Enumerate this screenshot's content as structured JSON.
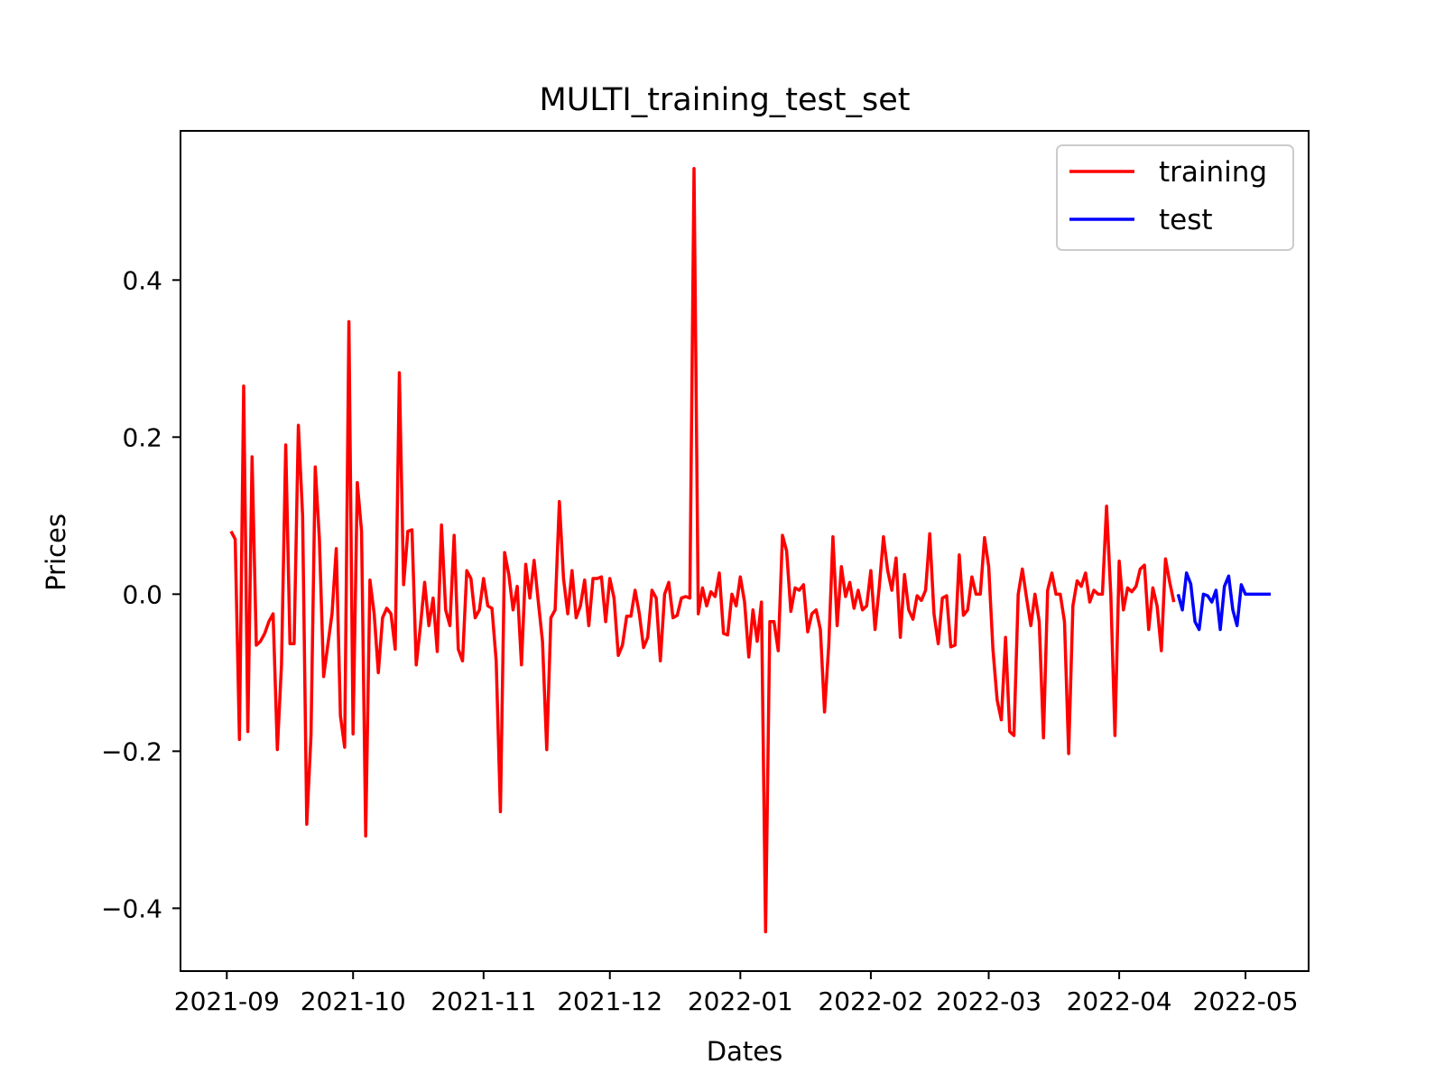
{
  "chart_data": {
    "type": "line",
    "title": "MULTI_training_test_set",
    "xlabel": "Dates",
    "ylabel": "Prices",
    "xlim": [
      "2021-08-21",
      "2022-05-16"
    ],
    "ylim": [
      -0.48,
      0.59
    ],
    "x_ticks": [
      "2021-09",
      "2021-10",
      "2021-11",
      "2021-12",
      "2022-01",
      "2022-02",
      "2022-03",
      "2022-04",
      "2022-05"
    ],
    "y_ticks": [
      -0.4,
      -0.2,
      0.0,
      0.2,
      0.4
    ],
    "y_tick_labels": [
      "−0.4",
      "−0.2",
      "0.0",
      "0.2",
      "0.4"
    ],
    "grid": false,
    "legend_position": "top-right",
    "colors": {
      "training": "#ff0000",
      "test": "#0000ff"
    },
    "series": [
      {
        "name": "training",
        "color": "#ff0000",
        "points": [
          [
            "2021-09-02",
            0.08
          ],
          [
            "2021-09-03",
            0.07
          ],
          [
            "2021-09-04",
            -0.185
          ],
          [
            "2021-09-05",
            0.265
          ],
          [
            "2021-09-06",
            -0.175
          ],
          [
            "2021-09-07",
            0.175
          ],
          [
            "2021-09-08",
            -0.065
          ],
          [
            "2021-09-09",
            -0.06
          ],
          [
            "2021-09-10",
            -0.05
          ],
          [
            "2021-09-11",
            -0.035
          ],
          [
            "2021-09-12",
            -0.025
          ],
          [
            "2021-09-13",
            -0.198
          ],
          [
            "2021-09-14",
            -0.09
          ],
          [
            "2021-09-15",
            0.19
          ],
          [
            "2021-09-16",
            -0.063
          ],
          [
            "2021-09-17",
            -0.063
          ],
          [
            "2021-09-18",
            0.215
          ],
          [
            "2021-09-19",
            0.1
          ],
          [
            "2021-09-20",
            -0.293
          ],
          [
            "2021-09-21",
            -0.18
          ],
          [
            "2021-09-22",
            0.162
          ],
          [
            "2021-09-23",
            0.07
          ],
          [
            "2021-09-24",
            -0.105
          ],
          [
            "2021-09-25",
            -0.065
          ],
          [
            "2021-09-26",
            -0.025
          ],
          [
            "2021-09-27",
            0.058
          ],
          [
            "2021-09-28",
            -0.155
          ],
          [
            "2021-09-29",
            -0.195
          ],
          [
            "2021-09-30",
            0.347
          ],
          [
            "2021-10-01",
            -0.178
          ],
          [
            "2021-10-02",
            0.142
          ],
          [
            "2021-10-03",
            0.08
          ],
          [
            "2021-10-04",
            -0.308
          ],
          [
            "2021-10-05",
            0.018
          ],
          [
            "2021-10-06",
            -0.025
          ],
          [
            "2021-10-07",
            -0.1
          ],
          [
            "2021-10-08",
            -0.03
          ],
          [
            "2021-10-09",
            -0.018
          ],
          [
            "2021-10-10",
            -0.025
          ],
          [
            "2021-10-11",
            -0.07
          ],
          [
            "2021-10-12",
            0.282
          ],
          [
            "2021-10-13",
            0.012
          ],
          [
            "2021-10-14",
            0.08
          ],
          [
            "2021-10-15",
            0.082
          ],
          [
            "2021-10-16",
            -0.09
          ],
          [
            "2021-10-17",
            -0.04
          ],
          [
            "2021-10-18",
            0.015
          ],
          [
            "2021-10-19",
            -0.04
          ],
          [
            "2021-10-20",
            -0.005
          ],
          [
            "2021-10-21",
            -0.073
          ],
          [
            "2021-10-22",
            0.088
          ],
          [
            "2021-10-23",
            -0.02
          ],
          [
            "2021-10-24",
            -0.04
          ],
          [
            "2021-10-25",
            0.075
          ],
          [
            "2021-10-26",
            -0.07
          ],
          [
            "2021-10-27",
            -0.085
          ],
          [
            "2021-10-28",
            0.03
          ],
          [
            "2021-10-29",
            0.02
          ],
          [
            "2021-10-30",
            -0.03
          ],
          [
            "2021-10-31",
            -0.02
          ],
          [
            "2021-11-01",
            0.02
          ],
          [
            "2021-11-02",
            -0.015
          ],
          [
            "2021-11-03",
            -0.018
          ],
          [
            "2021-11-04",
            -0.085
          ],
          [
            "2021-11-05",
            -0.277
          ],
          [
            "2021-11-06",
            0.053
          ],
          [
            "2021-11-07",
            0.025
          ],
          [
            "2021-11-08",
            -0.02
          ],
          [
            "2021-11-09",
            0.01
          ],
          [
            "2021-11-10",
            -0.09
          ],
          [
            "2021-11-11",
            0.038
          ],
          [
            "2021-11-12",
            -0.005
          ],
          [
            "2021-11-13",
            0.043
          ],
          [
            "2021-11-14",
            -0.01
          ],
          [
            "2021-11-15",
            -0.06
          ],
          [
            "2021-11-16",
            -0.198
          ],
          [
            "2021-11-17",
            -0.03
          ],
          [
            "2021-11-18",
            -0.02
          ],
          [
            "2021-11-19",
            0.118
          ],
          [
            "2021-11-20",
            0.02
          ],
          [
            "2021-11-21",
            -0.025
          ],
          [
            "2021-11-22",
            0.03
          ],
          [
            "2021-11-23",
            -0.03
          ],
          [
            "2021-11-24",
            -0.015
          ],
          [
            "2021-11-25",
            0.018
          ],
          [
            "2021-11-26",
            -0.04
          ],
          [
            "2021-11-27",
            0.02
          ],
          [
            "2021-11-28",
            0.02
          ],
          [
            "2021-11-29",
            0.022
          ],
          [
            "2021-11-30",
            -0.035
          ],
          [
            "2021-12-01",
            0.02
          ],
          [
            "2021-12-02",
            -0.005
          ],
          [
            "2021-12-03",
            -0.078
          ],
          [
            "2021-12-04",
            -0.065
          ],
          [
            "2021-12-05",
            -0.028
          ],
          [
            "2021-12-06",
            -0.028
          ],
          [
            "2021-12-07",
            0.005
          ],
          [
            "2021-12-08",
            -0.025
          ],
          [
            "2021-12-09",
            -0.068
          ],
          [
            "2021-12-10",
            -0.055
          ],
          [
            "2021-12-11",
            0.005
          ],
          [
            "2021-12-12",
            -0.005
          ],
          [
            "2021-12-13",
            -0.085
          ],
          [
            "2021-12-14",
            0.0
          ],
          [
            "2021-12-15",
            0.015
          ],
          [
            "2021-12-16",
            -0.03
          ],
          [
            "2021-12-17",
            -0.027
          ],
          [
            "2021-12-18",
            -0.005
          ],
          [
            "2021-12-19",
            -0.003
          ],
          [
            "2021-12-20",
            -0.005
          ],
          [
            "2021-12-21",
            0.542
          ],
          [
            "2021-12-22",
            -0.025
          ],
          [
            "2021-12-23",
            0.008
          ],
          [
            "2021-12-24",
            -0.015
          ],
          [
            "2021-12-25",
            0.003
          ],
          [
            "2021-12-26",
            -0.003
          ],
          [
            "2021-12-27",
            0.027
          ],
          [
            "2021-12-28",
            -0.05
          ],
          [
            "2021-12-29",
            -0.052
          ],
          [
            "2021-12-30",
            0.0
          ],
          [
            "2021-12-31",
            -0.015
          ],
          [
            "2022-01-01",
            0.022
          ],
          [
            "2022-01-02",
            -0.01
          ],
          [
            "2022-01-03",
            -0.08
          ],
          [
            "2022-01-04",
            -0.02
          ],
          [
            "2022-01-05",
            -0.06
          ],
          [
            "2022-01-06",
            -0.01
          ],
          [
            "2022-01-07",
            -0.43
          ],
          [
            "2022-01-08",
            -0.035
          ],
          [
            "2022-01-09",
            -0.035
          ],
          [
            "2022-01-10",
            -0.072
          ],
          [
            "2022-01-11",
            0.075
          ],
          [
            "2022-01-12",
            0.055
          ],
          [
            "2022-01-13",
            -0.022
          ],
          [
            "2022-01-14",
            0.008
          ],
          [
            "2022-01-15",
            0.005
          ],
          [
            "2022-01-16",
            0.012
          ],
          [
            "2022-01-17",
            -0.048
          ],
          [
            "2022-01-18",
            -0.025
          ],
          [
            "2022-01-19",
            -0.02
          ],
          [
            "2022-01-20",
            -0.045
          ],
          [
            "2022-01-21",
            -0.15
          ],
          [
            "2022-01-22",
            -0.065
          ],
          [
            "2022-01-23",
            0.073
          ],
          [
            "2022-01-24",
            -0.04
          ],
          [
            "2022-01-25",
            0.035
          ],
          [
            "2022-01-26",
            -0.003
          ],
          [
            "2022-01-27",
            0.015
          ],
          [
            "2022-01-28",
            -0.018
          ],
          [
            "2022-01-29",
            0.005
          ],
          [
            "2022-01-30",
            -0.02
          ],
          [
            "2022-01-31",
            -0.015
          ],
          [
            "2022-02-01",
            0.03
          ],
          [
            "2022-02-02",
            -0.045
          ],
          [
            "2022-02-03",
            0.01
          ],
          [
            "2022-02-04",
            0.073
          ],
          [
            "2022-02-05",
            0.03
          ],
          [
            "2022-02-06",
            0.005
          ],
          [
            "2022-02-07",
            0.046
          ],
          [
            "2022-02-08",
            -0.055
          ],
          [
            "2022-02-09",
            0.025
          ],
          [
            "2022-02-10",
            -0.02
          ],
          [
            "2022-02-11",
            -0.032
          ],
          [
            "2022-02-12",
            -0.002
          ],
          [
            "2022-02-13",
            -0.008
          ],
          [
            "2022-02-14",
            0.005
          ],
          [
            "2022-02-15",
            0.077
          ],
          [
            "2022-02-16",
            -0.025
          ],
          [
            "2022-02-17",
            -0.063
          ],
          [
            "2022-02-18",
            -0.005
          ],
          [
            "2022-02-19",
            -0.002
          ],
          [
            "2022-02-20",
            -0.067
          ],
          [
            "2022-02-21",
            -0.065
          ],
          [
            "2022-02-22",
            0.05
          ],
          [
            "2022-02-23",
            -0.027
          ],
          [
            "2022-02-24",
            -0.02
          ],
          [
            "2022-02-25",
            0.022
          ],
          [
            "2022-02-26",
            0.0
          ],
          [
            "2022-02-27",
            0.0
          ],
          [
            "2022-02-28",
            0.072
          ],
          [
            "2022-03-01",
            0.035
          ],
          [
            "2022-03-02",
            -0.07
          ],
          [
            "2022-03-03",
            -0.135
          ],
          [
            "2022-03-04",
            -0.16
          ],
          [
            "2022-03-05",
            -0.055
          ],
          [
            "2022-03-06",
            -0.175
          ],
          [
            "2022-03-07",
            -0.18
          ],
          [
            "2022-03-08",
            0.0
          ],
          [
            "2022-03-09",
            0.032
          ],
          [
            "2022-03-10",
            -0.005
          ],
          [
            "2022-03-11",
            -0.04
          ],
          [
            "2022-03-12",
            0.0
          ],
          [
            "2022-03-13",
            -0.035
          ],
          [
            "2022-03-14",
            -0.183
          ],
          [
            "2022-03-15",
            0.005
          ],
          [
            "2022-03-16",
            0.027
          ],
          [
            "2022-03-17",
            0.0
          ],
          [
            "2022-03-18",
            0.0
          ],
          [
            "2022-03-19",
            -0.035
          ],
          [
            "2022-03-20",
            -0.203
          ],
          [
            "2022-03-21",
            -0.015
          ],
          [
            "2022-03-22",
            0.017
          ],
          [
            "2022-03-23",
            0.01
          ],
          [
            "2022-03-24",
            0.027
          ],
          [
            "2022-03-25",
            -0.01
          ],
          [
            "2022-03-26",
            0.005
          ],
          [
            "2022-03-27",
            0.0
          ],
          [
            "2022-03-28",
            0.0
          ],
          [
            "2022-03-29",
            0.112
          ],
          [
            "2022-03-30",
            0.0
          ],
          [
            "2022-03-31",
            -0.18
          ],
          [
            "2022-04-01",
            0.042
          ],
          [
            "2022-04-02",
            -0.02
          ],
          [
            "2022-04-03",
            0.008
          ],
          [
            "2022-04-04",
            0.003
          ],
          [
            "2022-04-05",
            0.01
          ],
          [
            "2022-04-06",
            0.032
          ],
          [
            "2022-04-07",
            0.037
          ],
          [
            "2022-04-08",
            -0.045
          ],
          [
            "2022-04-09",
            0.008
          ],
          [
            "2022-04-10",
            -0.015
          ],
          [
            "2022-04-11",
            -0.072
          ],
          [
            "2022-04-12",
            0.045
          ],
          [
            "2022-04-13",
            0.015
          ],
          [
            "2022-04-14",
            -0.01
          ]
        ]
      },
      {
        "name": "test",
        "color": "#0000ff",
        "points": [
          [
            "2022-04-15",
            0.0
          ],
          [
            "2022-04-16",
            -0.02
          ],
          [
            "2022-04-17",
            0.027
          ],
          [
            "2022-04-18",
            0.013
          ],
          [
            "2022-04-19",
            -0.035
          ],
          [
            "2022-04-20",
            -0.045
          ],
          [
            "2022-04-21",
            0.0
          ],
          [
            "2022-04-22",
            -0.002
          ],
          [
            "2022-04-23",
            -0.01
          ],
          [
            "2022-04-24",
            0.005
          ],
          [
            "2022-04-25",
            -0.045
          ],
          [
            "2022-04-26",
            0.01
          ],
          [
            "2022-04-27",
            0.023
          ],
          [
            "2022-04-28",
            -0.02
          ],
          [
            "2022-04-29",
            -0.04
          ],
          [
            "2022-04-30",
            0.012
          ],
          [
            "2022-05-01",
            0.0
          ],
          [
            "2022-05-02",
            0.0
          ],
          [
            "2022-05-03",
            0.0
          ],
          [
            "2022-05-04",
            0.0
          ],
          [
            "2022-05-05",
            0.0
          ],
          [
            "2022-05-06",
            0.0
          ],
          [
            "2022-05-07",
            0.0
          ]
        ]
      }
    ]
  }
}
